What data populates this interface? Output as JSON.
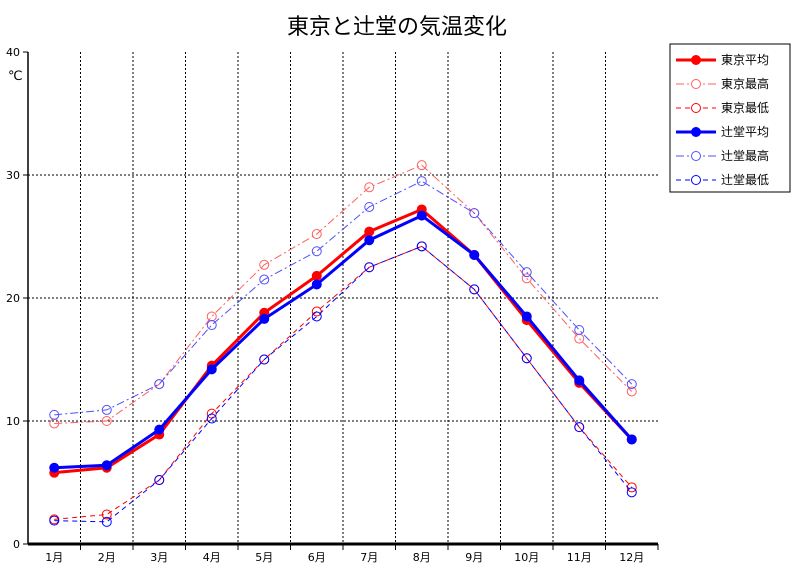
{
  "chart_data": {
    "type": "line",
    "title": "東京と辻堂の気温変化",
    "ylabel": "℃",
    "xlabel": "",
    "ylim": [
      0,
      40
    ],
    "yticks": [
      0,
      10,
      20,
      30,
      40
    ],
    "categories": [
      "1月",
      "2月",
      "3月",
      "4月",
      "5月",
      "6月",
      "7月",
      "8月",
      "9月",
      "10月",
      "11月",
      "12月"
    ],
    "legend_position": "right-top",
    "series": [
      {
        "name": "東京平均",
        "color": "#ff0000",
        "style": "solid-bold",
        "marker": "filled",
        "values": [
          5.8,
          6.2,
          8.9,
          14.5,
          18.8,
          21.8,
          25.4,
          27.2,
          23.5,
          18.2,
          13.1,
          8.5
        ]
      },
      {
        "name": "東京最高",
        "color": "#ff6060",
        "style": "dashdot-thin",
        "marker": "open",
        "values": [
          9.8,
          10.0,
          13.0,
          18.5,
          22.7,
          25.2,
          29.0,
          30.8,
          26.9,
          21.6,
          16.7,
          12.4
        ]
      },
      {
        "name": "東京最低",
        "color": "#ff0000",
        "style": "dashed",
        "marker": "open",
        "values": [
          2.0,
          2.4,
          5.2,
          10.6,
          15.0,
          18.9,
          22.5,
          24.2,
          20.7,
          15.1,
          9.5,
          4.6
        ]
      },
      {
        "name": "辻堂平均",
        "color": "#0000ff",
        "style": "solid-bold",
        "marker": "filled",
        "values": [
          6.2,
          6.4,
          9.3,
          14.2,
          18.3,
          21.1,
          24.7,
          26.7,
          23.5,
          18.5,
          13.3,
          8.5
        ]
      },
      {
        "name": "辻堂最高",
        "color": "#5050ff",
        "style": "dashdot-thin",
        "marker": "open",
        "values": [
          10.5,
          10.9,
          13.0,
          17.8,
          21.5,
          23.8,
          27.4,
          29.5,
          26.9,
          22.1,
          17.4,
          13.0
        ]
      },
      {
        "name": "辻堂最低",
        "color": "#0000ff",
        "style": "dashed",
        "marker": "open",
        "values": [
          1.9,
          1.8,
          5.2,
          10.2,
          15.0,
          18.5,
          22.5,
          24.2,
          20.7,
          15.1,
          9.5,
          4.2
        ]
      }
    ]
  }
}
